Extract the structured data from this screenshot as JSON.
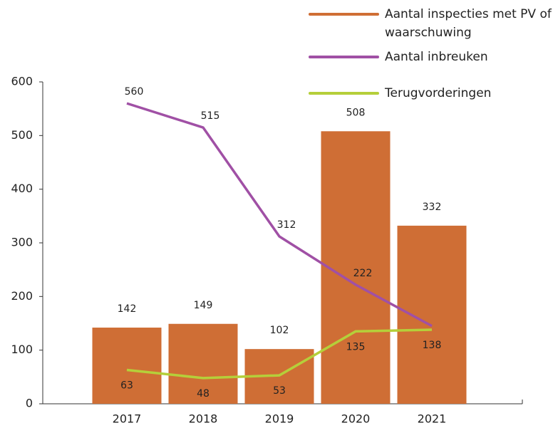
{
  "chart_data": {
    "type": "bar-line",
    "categories": [
      "2017",
      "2018",
      "2019",
      "2020",
      "2021"
    ],
    "bars": {
      "name": "Aantal inspecties met PV of waarschuwing",
      "color": "#cf6e35",
      "values": [
        142,
        149,
        102,
        508,
        332
      ]
    },
    "series": [
      {
        "name": "Aantal inbreuken",
        "color": "#a050a5",
        "values": [
          560,
          515,
          312,
          222,
          145
        ],
        "value_labels": [
          "560",
          "515",
          "312",
          "222",
          null
        ]
      },
      {
        "name": "Terugvorderingen",
        "color": "#b5cf3a",
        "values": [
          63,
          48,
          53,
          135,
          138
        ]
      }
    ],
    "ylim": [
      0,
      600
    ],
    "yticks": [
      0,
      100,
      200,
      300,
      400,
      500,
      600
    ]
  }
}
